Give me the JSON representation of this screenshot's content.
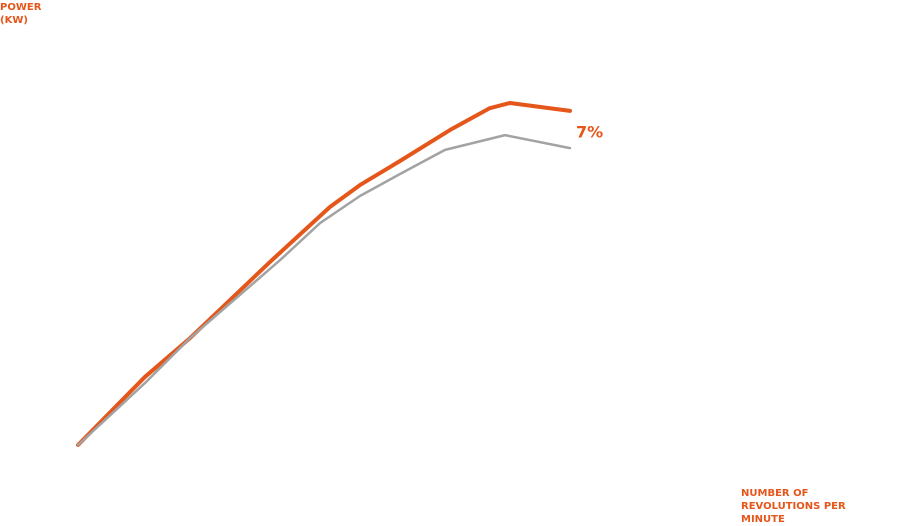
{
  "chart_data": {
    "type": "line",
    "y_label": "POWER (KW)",
    "x_label": "NUMBER OF REVOLUTIONS PER MINUTE",
    "annotation": "7%",
    "annotation_color": "#e5561a",
    "xlim": [
      0,
      100
    ],
    "ylim": [
      0,
      100
    ],
    "series": [
      {
        "color": "#e5561a",
        "width": 4,
        "x": [
          0,
          13.6,
          22.8,
          39.0,
          51.2,
          57.3,
          65.4,
          75.6,
          83.7,
          87.8,
          100
        ],
        "values": [
          0,
          19.9,
          31.3,
          53.5,
          69.6,
          76.0,
          83.0,
          92.1,
          98.5,
          100,
          97.7
        ]
      },
      {
        "color": "#a3a3a3",
        "width": 2.5,
        "x": [
          0,
          13.6,
          22.8,
          41.1,
          49.2,
          57.3,
          65.4,
          74.6,
          86.8,
          100
        ],
        "values": [
          0,
          18.1,
          31.3,
          54.1,
          64.9,
          72.8,
          79.2,
          86.3,
          90.6,
          86.8
        ]
      }
    ]
  }
}
